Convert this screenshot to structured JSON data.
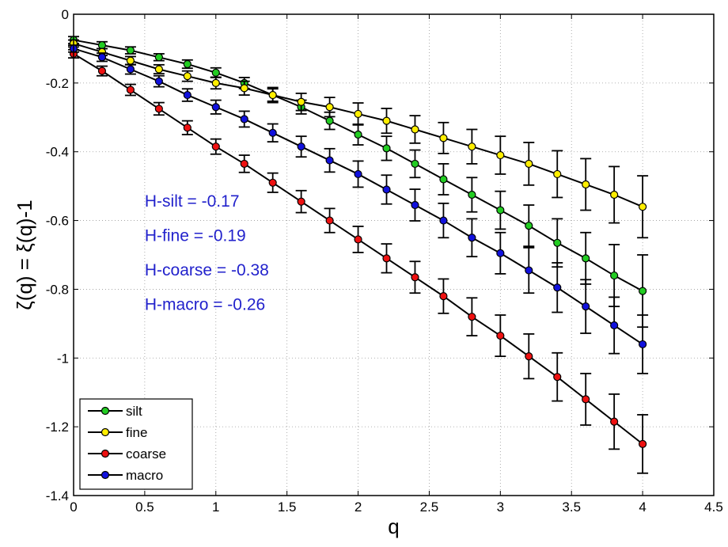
{
  "chart_data": {
    "type": "line",
    "xlabel": "q",
    "ylabel": "ζ(q) = ξ(q)-1",
    "xlim": [
      0,
      4.5
    ],
    "ylim": [
      -1.4,
      0
    ],
    "xticks": [
      0,
      0.5,
      1,
      1.5,
      2,
      2.5,
      3,
      3.5,
      4,
      4.5
    ],
    "xtick_labels": [
      "0",
      "0.5",
      "1",
      "1.5",
      "2",
      "2.5",
      "3",
      "3.5",
      "4",
      "4.5"
    ],
    "yticks": [
      0,
      -0.2,
      -0.4,
      -0.6,
      -0.8,
      -1,
      -1.2,
      -1.4
    ],
    "ytick_labels": [
      "0",
      "-0.2",
      "-0.4",
      "-0.6",
      "-0.8",
      "-1",
      "-1.2",
      "-1.4"
    ],
    "grid": true,
    "legend_position": "bottom-left",
    "x": [
      0,
      0.2,
      0.4,
      0.6,
      0.8,
      1.0,
      1.2,
      1.4,
      1.6,
      1.8,
      2.0,
      2.2,
      2.4,
      2.6,
      2.8,
      3.0,
      3.2,
      3.4,
      3.6,
      3.8,
      4.0
    ],
    "series": [
      {
        "name": "silt",
        "color": "#22cc22",
        "values": [
          -0.075,
          -0.09,
          -0.105,
          -0.125,
          -0.145,
          -0.17,
          -0.2,
          -0.235,
          -0.27,
          -0.31,
          -0.35,
          -0.39,
          -0.435,
          -0.48,
          -0.525,
          -0.57,
          -0.615,
          -0.665,
          -0.71,
          -0.76,
          -0.805
        ],
        "errors": [
          0.01,
          0.01,
          0.01,
          0.01,
          0.012,
          0.014,
          0.016,
          0.018,
          0.02,
          0.025,
          0.03,
          0.035,
          0.04,
          0.045,
          0.05,
          0.055,
          0.06,
          0.07,
          0.075,
          0.09,
          0.105
        ]
      },
      {
        "name": "fine",
        "color": "#ffee00",
        "values": [
          -0.085,
          -0.11,
          -0.135,
          -0.16,
          -0.18,
          -0.2,
          -0.215,
          -0.235,
          -0.255,
          -0.27,
          -0.29,
          -0.31,
          -0.335,
          -0.36,
          -0.385,
          -0.41,
          -0.435,
          -0.465,
          -0.495,
          -0.525,
          -0.56
        ],
        "errors": [
          0.01,
          0.01,
          0.012,
          0.013,
          0.015,
          0.017,
          0.02,
          0.022,
          0.025,
          0.028,
          0.032,
          0.036,
          0.04,
          0.045,
          0.05,
          0.055,
          0.062,
          0.068,
          0.075,
          0.082,
          0.09
        ]
      },
      {
        "name": "coarse",
        "color": "#ee1111",
        "values": [
          -0.115,
          -0.165,
          -0.22,
          -0.275,
          -0.33,
          -0.385,
          -0.435,
          -0.49,
          -0.545,
          -0.6,
          -0.655,
          -0.71,
          -0.765,
          -0.82,
          -0.88,
          -0.935,
          -0.995,
          -1.055,
          -1.12,
          -1.185,
          -1.25
        ],
        "errors": [
          0.012,
          0.014,
          0.016,
          0.018,
          0.02,
          0.022,
          0.025,
          0.028,
          0.032,
          0.035,
          0.038,
          0.042,
          0.046,
          0.05,
          0.055,
          0.06,
          0.065,
          0.07,
          0.075,
          0.08,
          0.085
        ]
      },
      {
        "name": "macro",
        "color": "#1111dd",
        "values": [
          -0.1,
          -0.125,
          -0.16,
          -0.195,
          -0.235,
          -0.27,
          -0.305,
          -0.345,
          -0.385,
          -0.425,
          -0.465,
          -0.51,
          -0.555,
          -0.6,
          -0.65,
          -0.695,
          -0.745,
          -0.795,
          -0.85,
          -0.905,
          -0.96
        ],
        "errors": [
          0.01,
          0.012,
          0.014,
          0.016,
          0.018,
          0.02,
          0.023,
          0.026,
          0.03,
          0.034,
          0.038,
          0.042,
          0.046,
          0.05,
          0.055,
          0.06,
          0.066,
          0.072,
          0.078,
          0.082,
          0.085
        ]
      }
    ],
    "annotations": [
      {
        "text": "H-silt = -0.17",
        "x": 0.5,
        "y": -0.56
      },
      {
        "text": "H-fine = -0.19",
        "x": 0.5,
        "y": -0.66
      },
      {
        "text": "H-coarse = -0.38",
        "x": 0.5,
        "y": -0.76
      },
      {
        "text": "H-macro = -0.26",
        "x": 0.5,
        "y": -0.86
      }
    ],
    "annotation_color": "#2222cc"
  }
}
